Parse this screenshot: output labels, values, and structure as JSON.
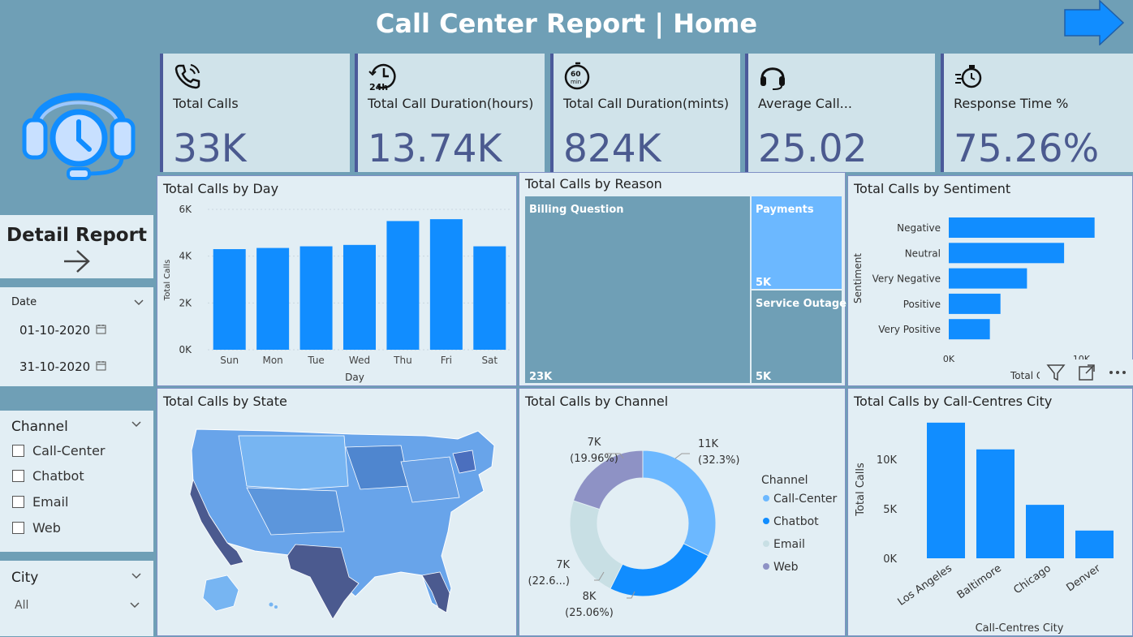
{
  "header": {
    "title": "Call Center Report | Home",
    "bg": "#6f9fb6"
  },
  "sidebar": {
    "detail_label": "Detail Report",
    "date": {
      "label": "Date",
      "start": "01-10-2020",
      "end": "31-10-2020"
    },
    "channel": {
      "label": "Channel",
      "options": [
        "Call-Center",
        "Chatbot",
        "Email",
        "Web"
      ]
    },
    "city": {
      "label": "City",
      "value": "All"
    }
  },
  "kpis": [
    {
      "label": "Total Calls",
      "value": "33K",
      "icon": "phone-icon"
    },
    {
      "label": "Total Call Duration(hours)",
      "value": "13.74K",
      "icon": "clock-24h-icon"
    },
    {
      "label": "Total Call Duration(mints)",
      "value": "824K",
      "icon": "timer-60min-icon"
    },
    {
      "label": "Average Call...",
      "value": "25.02",
      "icon": "headset-icon"
    },
    {
      "label": "Response Time %",
      "value": "75.26%",
      "icon": "stopwatch-icon"
    }
  ],
  "colors": {
    "bar": "#118dff",
    "dark": "#4b5a8f",
    "treemap": "#6f9fb6",
    "treemap_light": "#6cb8ff"
  },
  "chart_data": [
    {
      "type": "bar",
      "title": "Total Calls by Day",
      "xlabel": "Day",
      "ylabel": "Total Calls",
      "categories": [
        "Sun",
        "Mon",
        "Tue",
        "Wed",
        "Thu",
        "Fri",
        "Sat"
      ],
      "values": [
        4300,
        4350,
        4420,
        4480,
        5500,
        5580,
        4420
      ],
      "ylim": [
        0,
        6000
      ],
      "yticks": [
        0,
        2000,
        4000,
        6000
      ],
      "ytick_labels": [
        "0K",
        "2K",
        "4K",
        "6K"
      ]
    },
    {
      "type": "treemap",
      "title": "Total Calls by Reason",
      "items": [
        {
          "name": "Billing Question",
          "label": "23K",
          "value": 23
        },
        {
          "name": "Payments",
          "label": "5K",
          "value": 5
        },
        {
          "name": "Service Outage",
          "label": "5K",
          "value": 5
        }
      ]
    },
    {
      "type": "bar",
      "orientation": "horizontal",
      "title": "Total Calls by Sentiment",
      "ylabel": "Sentiment",
      "xlabel": "Total C",
      "categories": [
        "Negative",
        "Neutral",
        "Very Negative",
        "Positive",
        "Very Positive"
      ],
      "values": [
        11000,
        8700,
        5900,
        3900,
        3100
      ],
      "xticks": [
        0,
        10000
      ],
      "xtick_labels": [
        "0K",
        "10K"
      ]
    },
    {
      "type": "map",
      "title": "Total Calls by State"
    },
    {
      "type": "pie",
      "variant": "donut",
      "title": "Total Calls by Channel",
      "legend_title": "Channel",
      "legend_position": "right",
      "slices": [
        {
          "name": "Call-Center",
          "value": 32.3,
          "label": "11K",
          "pct": "(32.3%)",
          "color": "#6cb8ff"
        },
        {
          "name": "Chatbot",
          "value": 25.06,
          "label": "8K",
          "pct": "(25.06%)",
          "color": "#118dff"
        },
        {
          "name": "Email",
          "value": 22.68,
          "label": "7K",
          "pct": "(22.6...)",
          "color": "#c8dfe4"
        },
        {
          "name": "Web",
          "value": 19.96,
          "label": "7K",
          "pct": "(19.96%)",
          "color": "#8e92c5"
        }
      ]
    },
    {
      "type": "bar",
      "title": "Total Calls by Call-Centres City",
      "xlabel": "Call-Centres City",
      "ylabel": "Total Calls",
      "categories": [
        "Los Angeles",
        "Baltimore",
        "Chicago",
        "Denver"
      ],
      "values": [
        13700,
        11000,
        5400,
        2800
      ],
      "ylim": [
        0,
        15000
      ],
      "yticks": [
        0,
        5000,
        10000
      ],
      "ytick_labels": [
        "0K",
        "5K",
        "10K"
      ]
    }
  ]
}
